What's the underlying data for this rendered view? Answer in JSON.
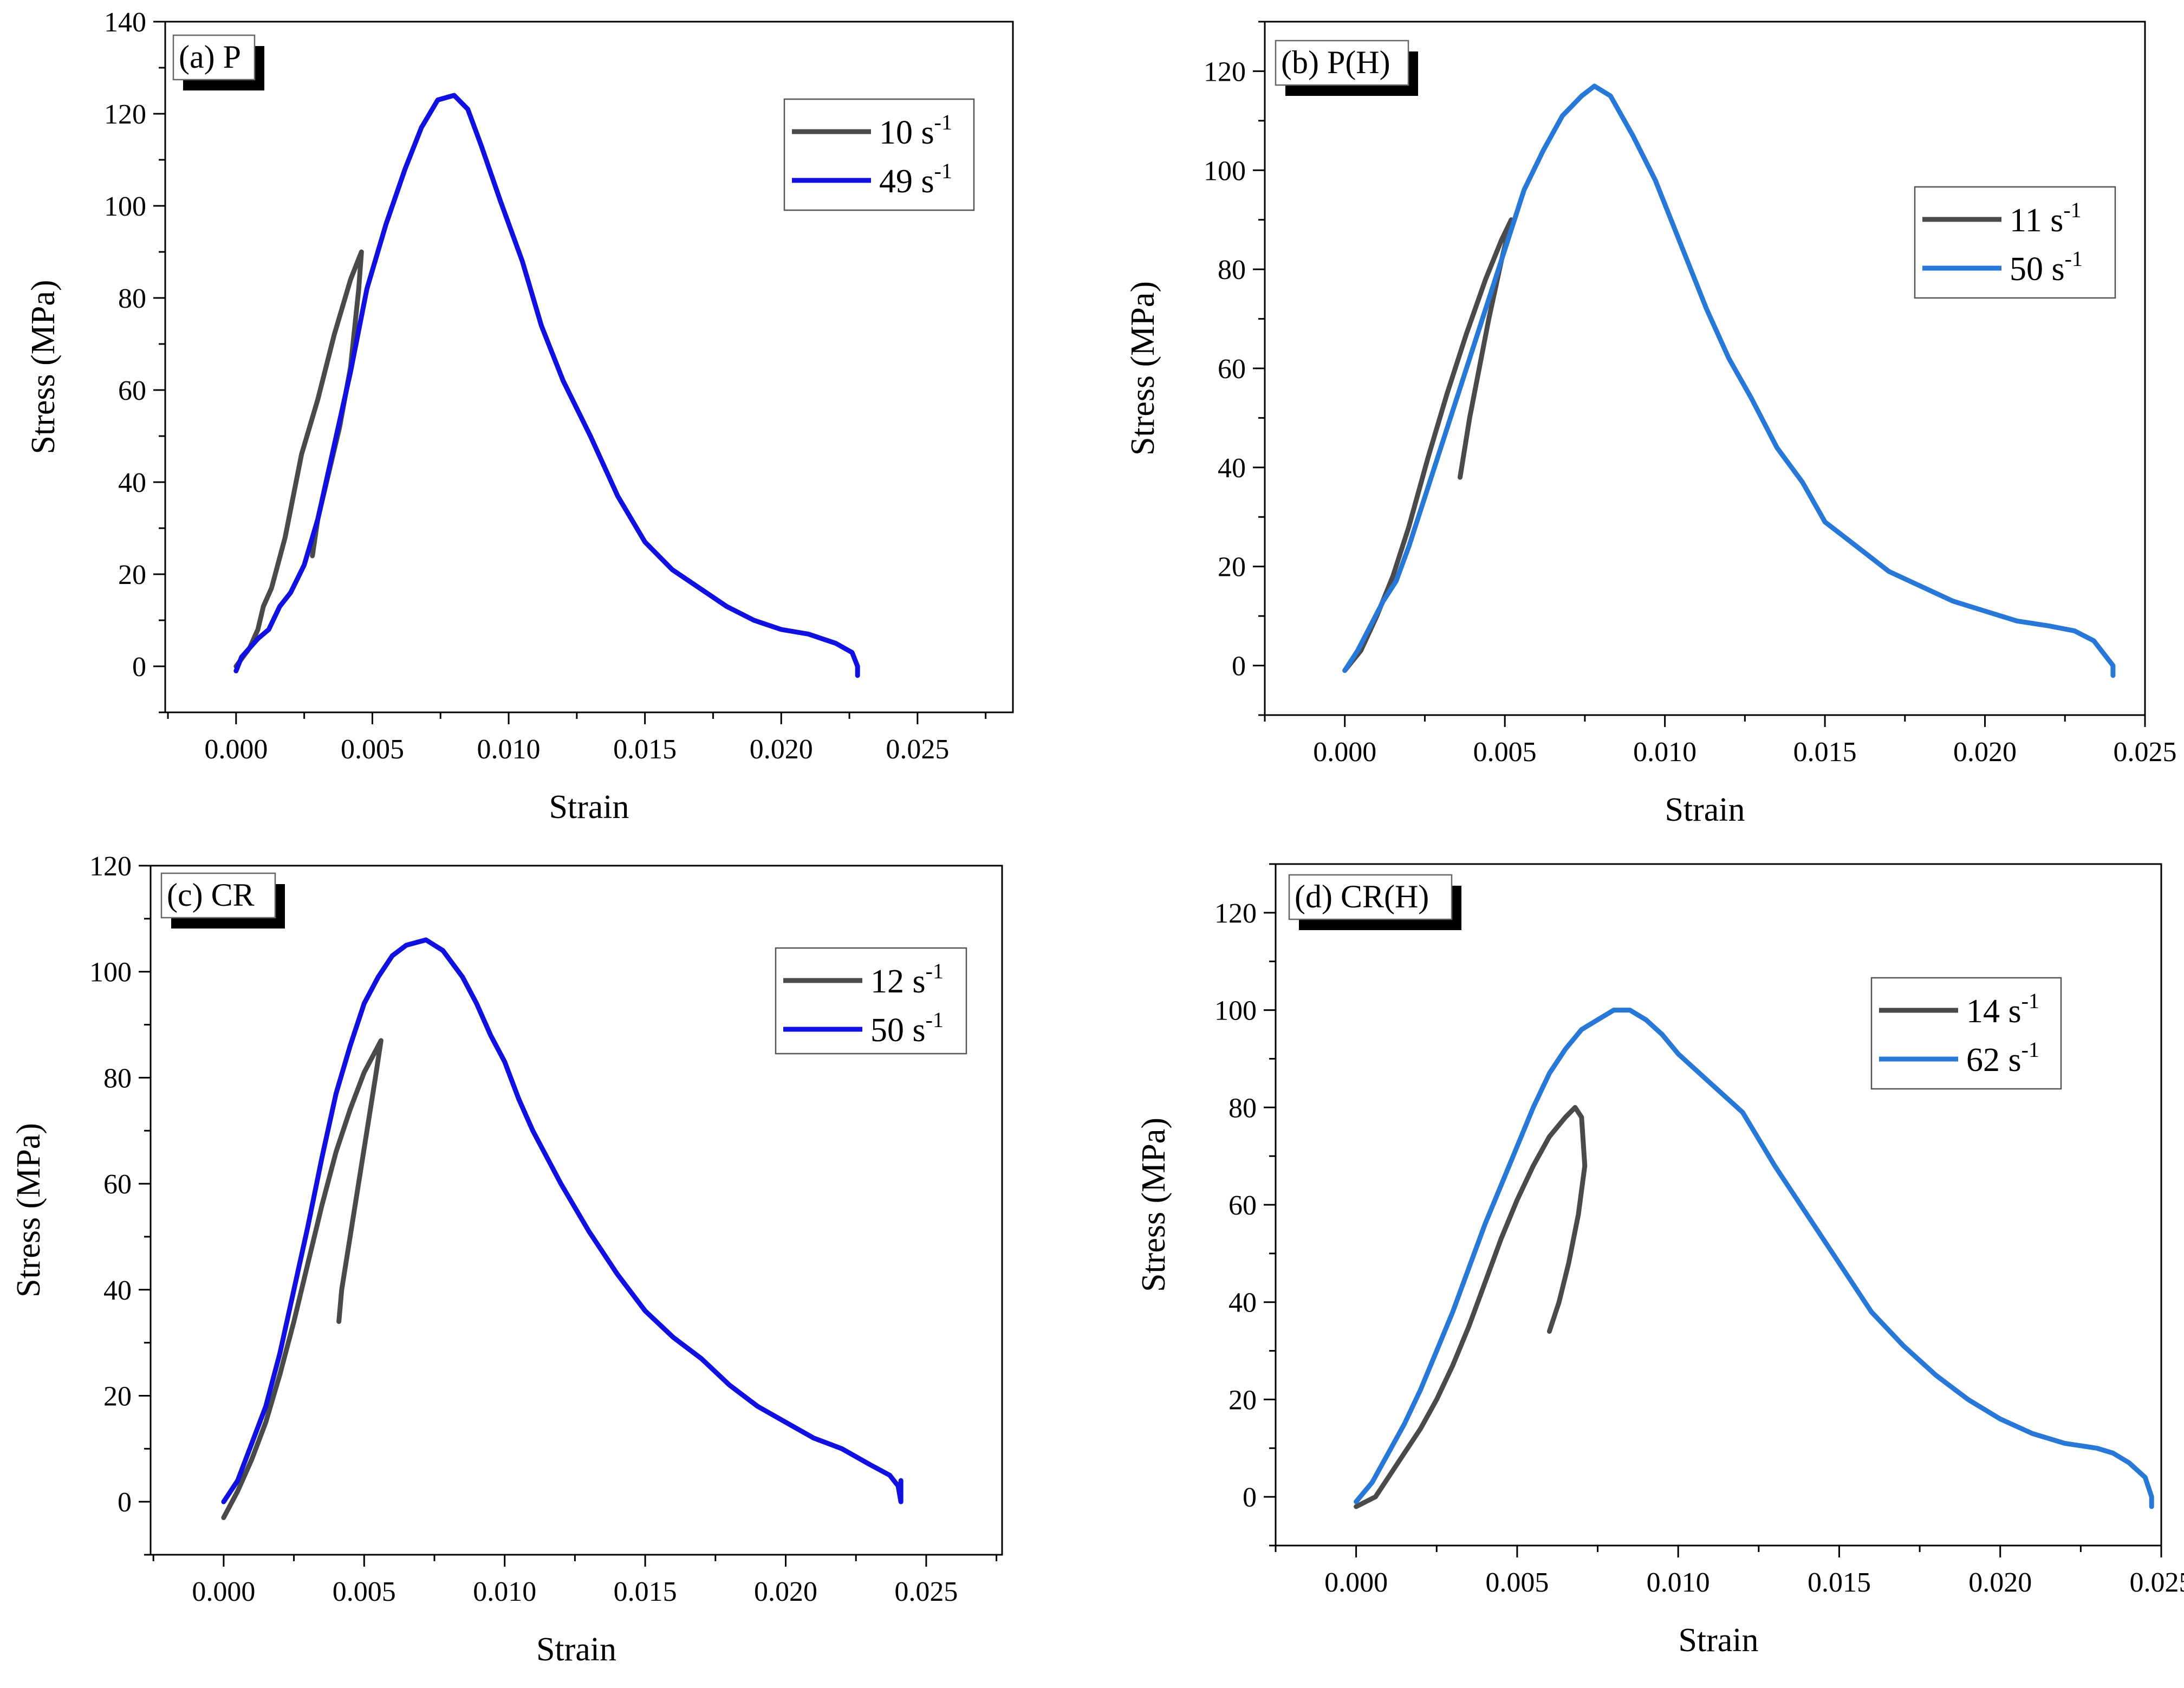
{
  "figure": {
    "panels_count": 4
  },
  "chart_data": [
    {
      "type": "line",
      "panel_label": "(a) P",
      "xlabel": "Strain",
      "ylabel": "Stress (MPa)",
      "xlim": [
        -0.0026,
        0.0285
      ],
      "ylim": [
        -10,
        140
      ],
      "xticks": [
        "0.000",
        "0.005",
        "0.010",
        "0.015",
        "0.020",
        "0.025"
      ],
      "yticks": [
        "0",
        "20",
        "40",
        "60",
        "80",
        "100",
        "120",
        "140"
      ],
      "legend_position": "top-right",
      "series": [
        {
          "name": "10 s",
          "name_sup": "-1",
          "color": "#4a4a4a",
          "points": [
            [
              0.0,
              0
            ],
            [
              0.0005,
              4
            ],
            [
              0.0008,
              8
            ],
            [
              0.001,
              13
            ],
            [
              0.0013,
              17
            ],
            [
              0.0018,
              28
            ],
            [
              0.0024,
              46
            ],
            [
              0.003,
              58
            ],
            [
              0.0036,
              72
            ],
            [
              0.0042,
              84
            ],
            [
              0.0046,
              90
            ],
            [
              0.0045,
              82
            ],
            [
              0.0042,
              65
            ],
            [
              0.0038,
              52
            ],
            [
              0.0034,
              42
            ],
            [
              0.003,
              32
            ],
            [
              0.0028,
              24
            ]
          ]
        },
        {
          "name": "49 s",
          "name_sup": "-1",
          "color": "#1010e0",
          "points": [
            [
              0.0,
              -1
            ],
            [
              0.0002,
              2
            ],
            [
              0.0005,
              4
            ],
            [
              0.0008,
              6
            ],
            [
              0.0012,
              8
            ],
            [
              0.0016,
              13
            ],
            [
              0.002,
              16
            ],
            [
              0.0025,
              22
            ],
            [
              0.003,
              32
            ],
            [
              0.0036,
              48
            ],
            [
              0.0042,
              64
            ],
            [
              0.0048,
              82
            ],
            [
              0.0055,
              96
            ],
            [
              0.0062,
              108
            ],
            [
              0.0068,
              117
            ],
            [
              0.0074,
              123
            ],
            [
              0.008,
              124
            ],
            [
              0.0085,
              121
            ],
            [
              0.009,
              113
            ],
            [
              0.0097,
              101
            ],
            [
              0.0105,
              88
            ],
            [
              0.0112,
              74
            ],
            [
              0.012,
              62
            ],
            [
              0.013,
              50
            ],
            [
              0.014,
              37
            ],
            [
              0.015,
              27
            ],
            [
              0.016,
              21
            ],
            [
              0.017,
              17
            ],
            [
              0.018,
              13
            ],
            [
              0.019,
              10
            ],
            [
              0.02,
              8
            ],
            [
              0.021,
              7
            ],
            [
              0.022,
              5
            ],
            [
              0.0226,
              3
            ],
            [
              0.0228,
              0
            ],
            [
              0.0228,
              -2
            ]
          ]
        }
      ]
    },
    {
      "type": "line",
      "panel_label": "(b) P(H)",
      "xlabel": "Strain",
      "ylabel": "Stress (MPa)",
      "xlim": [
        -0.0025,
        0.025
      ],
      "ylim": [
        -10,
        130
      ],
      "xticks": [
        "0.000",
        "0.005",
        "0.010",
        "0.015",
        "0.020",
        "0.025"
      ],
      "yticks": [
        "0",
        "20",
        "40",
        "60",
        "80",
        "100",
        "120"
      ],
      "legend_position": "right",
      "series": [
        {
          "name": "11 s",
          "name_sup": "-1",
          "color": "#4a4a4a",
          "points": [
            [
              0.0,
              -1
            ],
            [
              0.0005,
              3
            ],
            [
              0.001,
              10
            ],
            [
              0.0015,
              18
            ],
            [
              0.002,
              28
            ],
            [
              0.0026,
              42
            ],
            [
              0.0032,
              55
            ],
            [
              0.0038,
              67
            ],
            [
              0.0044,
              78
            ],
            [
              0.0049,
              86
            ],
            [
              0.0052,
              90
            ],
            [
              0.0049,
              82
            ],
            [
              0.0045,
              70
            ],
            [
              0.0042,
              60
            ],
            [
              0.0039,
              50
            ],
            [
              0.0036,
              38
            ]
          ]
        },
        {
          "name": "50 s",
          "name_sup": "-1",
          "color": "#2878d8",
          "points": [
            [
              0.0,
              -1
            ],
            [
              0.0004,
              3
            ],
            [
              0.0008,
              8
            ],
            [
              0.0012,
              13
            ],
            [
              0.0016,
              17
            ],
            [
              0.002,
              24
            ],
            [
              0.0026,
              36
            ],
            [
              0.0032,
              48
            ],
            [
              0.0038,
              60
            ],
            [
              0.0044,
              72
            ],
            [
              0.005,
              84
            ],
            [
              0.0056,
              96
            ],
            [
              0.0062,
              104
            ],
            [
              0.0068,
              111
            ],
            [
              0.0074,
              115
            ],
            [
              0.0078,
              117
            ],
            [
              0.0083,
              115
            ],
            [
              0.009,
              107
            ],
            [
              0.0097,
              98
            ],
            [
              0.0105,
              85
            ],
            [
              0.0113,
              72
            ],
            [
              0.012,
              62
            ],
            [
              0.0127,
              54
            ],
            [
              0.0135,
              44
            ],
            [
              0.0143,
              37
            ],
            [
              0.015,
              29
            ],
            [
              0.016,
              24
            ],
            [
              0.017,
              19
            ],
            [
              0.018,
              16
            ],
            [
              0.019,
              13
            ],
            [
              0.02,
              11
            ],
            [
              0.021,
              9
            ],
            [
              0.022,
              8
            ],
            [
              0.0228,
              7
            ],
            [
              0.0234,
              5
            ],
            [
              0.024,
              0
            ],
            [
              0.024,
              -2
            ]
          ]
        }
      ]
    },
    {
      "type": "line",
      "panel_label": "(c) CR",
      "xlabel": "Strain",
      "ylabel": "Stress (MPa)",
      "xlim": [
        -0.0026,
        0.0277
      ],
      "ylim": [
        -10,
        120
      ],
      "xticks": [
        "0.000",
        "0.005",
        "0.010",
        "0.015",
        "0.020",
        "0.025"
      ],
      "yticks": [
        "0",
        "20",
        "40",
        "60",
        "80",
        "100",
        "120"
      ],
      "legend_position": "top-right",
      "series": [
        {
          "name": "12 s",
          "name_sup": "-1",
          "color": "#4a4a4a",
          "points": [
            [
              0.0,
              -3
            ],
            [
              0.0005,
              2
            ],
            [
              0.001,
              8
            ],
            [
              0.0015,
              15
            ],
            [
              0.002,
              24
            ],
            [
              0.0025,
              34
            ],
            [
              0.003,
              45
            ],
            [
              0.0035,
              56
            ],
            [
              0.004,
              66
            ],
            [
              0.0045,
              74
            ],
            [
              0.005,
              81
            ],
            [
              0.0055,
              86
            ],
            [
              0.0056,
              87
            ],
            [
              0.0054,
              80
            ],
            [
              0.0051,
              70
            ],
            [
              0.0048,
              60
            ],
            [
              0.0045,
              50
            ],
            [
              0.0042,
              40
            ],
            [
              0.0041,
              34
            ]
          ]
        },
        {
          "name": "50 s",
          "name_sup": "-1",
          "color": "#1010e0",
          "points": [
            [
              0.0,
              0
            ],
            [
              0.0005,
              4
            ],
            [
              0.001,
              11
            ],
            [
              0.0015,
              18
            ],
            [
              0.002,
              28
            ],
            [
              0.0025,
              40
            ],
            [
              0.003,
              52
            ],
            [
              0.0035,
              65
            ],
            [
              0.004,
              77
            ],
            [
              0.0045,
              86
            ],
            [
              0.005,
              94
            ],
            [
              0.0055,
              99
            ],
            [
              0.006,
              103
            ],
            [
              0.0065,
              105
            ],
            [
              0.0072,
              106
            ],
            [
              0.0078,
              104
            ],
            [
              0.0085,
              99
            ],
            [
              0.009,
              94
            ],
            [
              0.0095,
              88
            ],
            [
              0.01,
              83
            ],
            [
              0.0105,
              76
            ],
            [
              0.011,
              70
            ],
            [
              0.012,
              60
            ],
            [
              0.013,
              51
            ],
            [
              0.014,
              43
            ],
            [
              0.015,
              36
            ],
            [
              0.016,
              31
            ],
            [
              0.017,
              27
            ],
            [
              0.018,
              22
            ],
            [
              0.019,
              18
            ],
            [
              0.02,
              15
            ],
            [
              0.021,
              12
            ],
            [
              0.022,
              10
            ],
            [
              0.023,
              7
            ],
            [
              0.0237,
              5
            ],
            [
              0.024,
              3
            ],
            [
              0.0241,
              0
            ],
            [
              0.0241,
              4
            ]
          ]
        }
      ]
    },
    {
      "type": "line",
      "panel_label": "(d) CR(H)",
      "xlabel": "Strain",
      "ylabel": "Stress (MPa)",
      "xlim": [
        -0.0025,
        0.025
      ],
      "ylim": [
        -10,
        130
      ],
      "xticks": [
        "0.000",
        "0.005",
        "0.010",
        "0.015",
        "0.020",
        "0.025"
      ],
      "yticks": [
        "0",
        "20",
        "40",
        "60",
        "80",
        "100",
        "120"
      ],
      "legend_position": "top-right",
      "series": [
        {
          "name": "14 s",
          "name_sup": "-1",
          "color": "#4a4a4a",
          "points": [
            [
              0.0,
              -2
            ],
            [
              0.0006,
              0
            ],
            [
              0.001,
              4
            ],
            [
              0.0013,
              7
            ],
            [
              0.002,
              14
            ],
            [
              0.0025,
              20
            ],
            [
              0.003,
              27
            ],
            [
              0.0035,
              35
            ],
            [
              0.004,
              44
            ],
            [
              0.0045,
              53
            ],
            [
              0.005,
              61
            ],
            [
              0.0055,
              68
            ],
            [
              0.006,
              74
            ],
            [
              0.0065,
              78
            ],
            [
              0.0068,
              80
            ],
            [
              0.007,
              78
            ],
            [
              0.0071,
              68
            ],
            [
              0.0069,
              58
            ],
            [
              0.0066,
              48
            ],
            [
              0.0063,
              40
            ],
            [
              0.006,
              34
            ]
          ]
        },
        {
          "name": "62 s",
          "name_sup": "-1",
          "color": "#2878d8",
          "points": [
            [
              0.0,
              -1
            ],
            [
              0.0005,
              3
            ],
            [
              0.001,
              9
            ],
            [
              0.0015,
              15
            ],
            [
              0.002,
              22
            ],
            [
              0.0025,
              30
            ],
            [
              0.003,
              38
            ],
            [
              0.0035,
              47
            ],
            [
              0.004,
              56
            ],
            [
              0.0045,
              64
            ],
            [
              0.005,
              72
            ],
            [
              0.0055,
              80
            ],
            [
              0.006,
              87
            ],
            [
              0.0065,
              92
            ],
            [
              0.007,
              96
            ],
            [
              0.0075,
              98
            ],
            [
              0.008,
              100
            ],
            [
              0.0085,
              100
            ],
            [
              0.009,
              98
            ],
            [
              0.0095,
              95
            ],
            [
              0.01,
              91
            ],
            [
              0.011,
              85
            ],
            [
              0.012,
              79
            ],
            [
              0.013,
              68
            ],
            [
              0.014,
              58
            ],
            [
              0.015,
              48
            ],
            [
              0.016,
              38
            ],
            [
              0.017,
              31
            ],
            [
              0.018,
              25
            ],
            [
              0.019,
              20
            ],
            [
              0.02,
              16
            ],
            [
              0.021,
              13
            ],
            [
              0.022,
              11
            ],
            [
              0.023,
              10
            ],
            [
              0.0235,
              9
            ],
            [
              0.024,
              7
            ],
            [
              0.0245,
              4
            ],
            [
              0.0247,
              0
            ],
            [
              0.0247,
              -2
            ]
          ]
        }
      ]
    }
  ]
}
